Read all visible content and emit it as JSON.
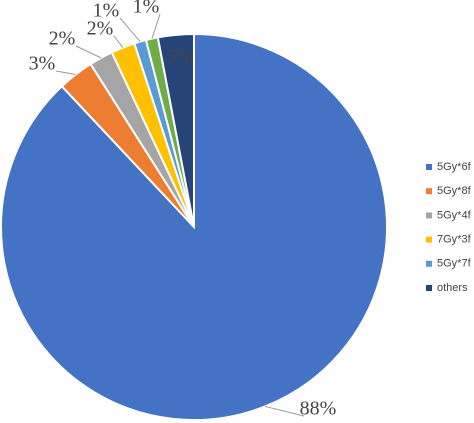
{
  "chart_data": {
    "type": "pie",
    "categories": [
      "5Gy*6f",
      "5Gy*8f",
      "5Gy*4f",
      "7Gy*3f",
      "5Gy*7f",
      null,
      "others"
    ],
    "values": [
      88,
      3,
      2,
      2,
      1,
      1,
      3
    ],
    "value_labels": [
      "88%",
      "3%",
      "2%",
      "2%",
      "1%",
      "1%",
      "3%"
    ],
    "colors": [
      "#4472c4",
      "#ed7d31",
      "#a5a5a5",
      "#ffc000",
      "#5b9bd5",
      "#70ad47",
      "#264478"
    ],
    "legend": "right"
  }
}
